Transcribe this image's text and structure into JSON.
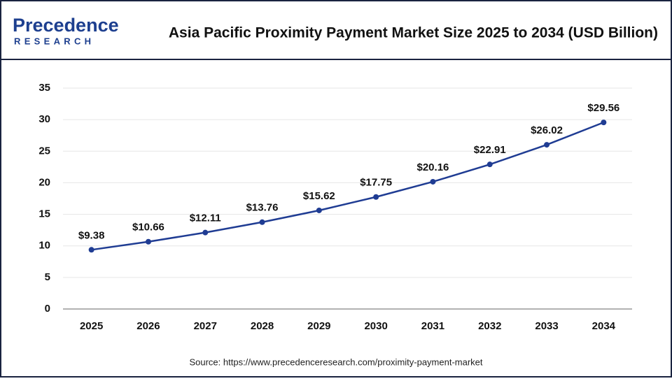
{
  "logo": {
    "name": "Precedence",
    "tagline": "RESEARCH"
  },
  "chart_data": {
    "type": "line",
    "title": "Asia Pacific Proximity Payment Market Size 2025 to 2034 (USD Billion)",
    "source": "Source: https://www.precedenceresearch.com/proximity-payment-market",
    "categories": [
      "2025",
      "2026",
      "2027",
      "2028",
      "2029",
      "2030",
      "2031",
      "2032",
      "2033",
      "2034"
    ],
    "series": [
      {
        "color": "#1f3c93",
        "values": [
          9.38,
          10.66,
          12.11,
          13.76,
          15.62,
          17.75,
          20.16,
          22.91,
          26.02,
          29.56
        ],
        "value_labels": [
          "$9.38",
          "$10.66",
          "$12.11",
          "$13.76",
          "$15.62",
          "$17.75",
          "$20.16",
          "$22.91",
          "$26.02",
          "$29.56"
        ]
      }
    ],
    "ylim": [
      0,
      35
    ],
    "yticks": [
      0,
      5,
      10,
      15,
      20,
      25,
      30,
      35
    ],
    "grid": true
  }
}
